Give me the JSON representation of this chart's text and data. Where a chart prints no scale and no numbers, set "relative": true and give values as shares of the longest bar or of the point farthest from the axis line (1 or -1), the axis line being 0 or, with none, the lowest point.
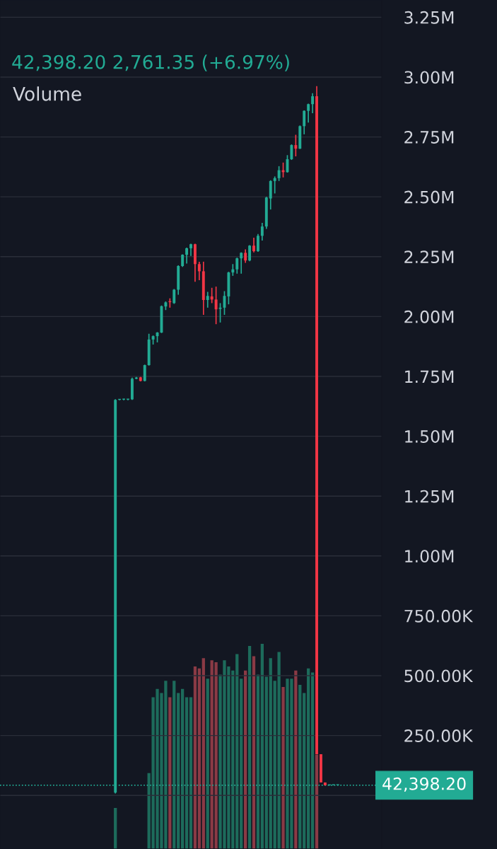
{
  "chart_data": [
    {
      "type": "candlestick",
      "subtitle": "42,398.20 2,761.35 (+6.97%)",
      "categories": [
        null,
        null,
        null,
        null,
        null,
        null,
        null,
        null,
        null,
        null,
        null,
        null,
        null,
        null,
        null,
        null,
        null,
        null,
        null,
        null,
        null,
        null,
        null,
        null,
        null,
        null,
        null,
        null,
        null,
        null,
        null,
        null,
        null,
        null,
        null,
        null,
        null,
        null,
        null,
        null,
        null,
        null,
        null,
        null,
        null,
        null,
        null,
        null,
        null,
        null,
        null,
        null,
        null,
        null,
        null,
        null,
        null,
        null,
        null,
        null,
        null,
        null,
        null,
        null,
        null,
        null,
        null,
        null,
        null,
        null,
        null,
        null,
        null,
        null,
        null,
        null,
        null,
        null,
        null,
        null,
        null,
        null,
        null,
        null,
        null,
        null,
        null,
        null,
        null,
        null,
        null
      ],
      "ohlc": [
        null,
        null,
        null,
        null,
        null,
        null,
        null,
        null,
        null,
        null,
        null,
        null,
        null,
        null,
        null,
        null,
        null,
        null,
        null,
        null,
        null,
        null,
        null,
        null,
        null,
        null,
        null,
        [
          12000,
          1655000,
          8000,
          1652000
        ],
        [
          1652000,
          1655000,
          1650000,
          1653000
        ],
        [
          1653000,
          1656000,
          1650000,
          1653000
        ],
        [
          1653000,
          1655000,
          1650000,
          1654000
        ],
        [
          1654000,
          1745000,
          1652000,
          1740000
        ],
        [
          1740000,
          1748000,
          1738000,
          1745000
        ],
        [
          1746000,
          1748000,
          1729000,
          1731000
        ],
        [
          1731000,
          1799000,
          1729000,
          1797000
        ],
        [
          1797000,
          1928000,
          1795000,
          1904000
        ],
        [
          1904000,
          1921000,
          1883000,
          1918000
        ],
        [
          1918000,
          1935000,
          1892000,
          1933000
        ],
        [
          1933000,
          2046000,
          1931000,
          2043000
        ],
        [
          2042000,
          2063000,
          2027000,
          2059000
        ],
        [
          2063000,
          2076000,
          2037000,
          2060000
        ],
        [
          2056000,
          2115000,
          2053000,
          2112000
        ],
        [
          2112000,
          2214000,
          2091000,
          2211000
        ],
        [
          2211000,
          2260000,
          2207000,
          2258000
        ],
        [
          2258000,
          2288000,
          2221000,
          2285000
        ],
        [
          2285000,
          2304000,
          2253000,
          2302000
        ],
        [
          2302000,
          2304000,
          2145000,
          2219000
        ],
        [
          2219000,
          2229000,
          2152000,
          2189000
        ],
        [
          2189000,
          2229000,
          2007000,
          2069000
        ],
        [
          2069000,
          2103000,
          2037000,
          2086000
        ],
        [
          2084000,
          2120000,
          2056000,
          2071000
        ],
        [
          2071000,
          2125000,
          1968000,
          2030000
        ],
        [
          2032000,
          2056000,
          1975000,
          2037000
        ],
        [
          2037000,
          2106000,
          2007000,
          2086000
        ],
        [
          2084000,
          2187000,
          2051000,
          2184000
        ],
        [
          2184000,
          2219000,
          2170000,
          2197000
        ],
        [
          2197000,
          2246000,
          2179000,
          2243000
        ],
        [
          2243000,
          2268000,
          2179000,
          2266000
        ],
        [
          2266000,
          2280000,
          2224000,
          2234000
        ],
        [
          2234000,
          2298000,
          2231000,
          2296000
        ],
        [
          2296000,
          2329000,
          2268000,
          2273000
        ],
        [
          2273000,
          2345000,
          2270000,
          2337000
        ],
        [
          2337000,
          2391000,
          2317000,
          2376000
        ],
        [
          2376000,
          2500000,
          2366000,
          2497000
        ],
        [
          2493000,
          2569000,
          2447000,
          2566000
        ],
        [
          2566000,
          2585000,
          2514000,
          2578000
        ],
        [
          2578000,
          2628000,
          2566000,
          2611000
        ],
        [
          2611000,
          2643000,
          2581000,
          2603000
        ],
        [
          2603000,
          2674000,
          2601000,
          2657000
        ],
        [
          2657000,
          2719000,
          2654000,
          2716000
        ],
        [
          2716000,
          2759000,
          2669000,
          2701000
        ],
        [
          2701000,
          2798000,
          2700000,
          2795000
        ],
        [
          2795000,
          2861000,
          2761000,
          2859000
        ],
        [
          2859000,
          2889000,
          2810000,
          2887000
        ],
        [
          2887000,
          2933000,
          2849000,
          2920000
        ],
        [
          2920000,
          2962000,
          172000,
          172000
        ],
        [
          172000,
          172000,
          54000,
          54000
        ],
        [
          54000,
          54000,
          42000,
          42000
        ],
        [
          42000,
          43000,
          41000,
          42400
        ],
        [
          42400,
          43000,
          42000,
          42500
        ],
        [
          42500,
          43000,
          42000,
          42500
        ],
        null,
        null,
        null,
        null,
        null,
        null,
        null,
        null,
        null,
        null
      ],
      "colors": [
        null,
        null,
        null,
        null,
        null,
        null,
        null,
        null,
        null,
        null,
        null,
        null,
        null,
        null,
        null,
        null,
        null,
        null,
        null,
        null,
        null,
        null,
        null,
        null,
        null,
        null,
        null,
        "#22ab94",
        "#22ab94",
        "#22ab94",
        "#22ab94",
        "#22ab94",
        "#22ab94",
        "#f23645",
        "#22ab94",
        "#22ab94",
        "#22ab94",
        "#22ab94",
        "#22ab94",
        "#22ab94",
        "#f23645",
        "#22ab94",
        "#22ab94",
        "#22ab94",
        "#22ab94",
        "#22ab94",
        "#f23645",
        "#f23645",
        "#f23645",
        "#22ab94",
        "#f23645",
        "#f23645",
        "#22ab94",
        "#22ab94",
        "#22ab94",
        "#22ab94",
        "#22ab94",
        "#22ab94",
        "#f23645",
        "#22ab94",
        "#f23645",
        "#22ab94",
        "#22ab94",
        "#22ab94",
        "#22ab94",
        "#22ab94",
        "#22ab94",
        "#f23645",
        "#22ab94",
        "#22ab94",
        "#f23645",
        "#22ab94",
        "#22ab94",
        "#22ab94",
        "#22ab94",
        "#f23645",
        "#f23645",
        "#f23645",
        "#22ab94",
        "#22ab94",
        "#22ab94",
        null,
        null,
        null,
        null,
        null,
        null,
        null,
        null,
        null,
        null
      ],
      "ylim": [
        -224000,
        3322000
      ],
      "yticks": [
        {
          "value": 0,
          "label": null
        },
        {
          "value": 250000,
          "label": "250.00K"
        },
        {
          "value": 500000,
          "label": "500.00K"
        },
        {
          "value": 750000,
          "label": "750.00K"
        },
        {
          "value": 1000000,
          "label": "1.00M"
        },
        {
          "value": 1250000,
          "label": "1.25M"
        },
        {
          "value": 1500000,
          "label": "1.50M"
        },
        {
          "value": 1750000,
          "label": "1.75M"
        },
        {
          "value": 2000000,
          "label": "2.00M"
        },
        {
          "value": 2250000,
          "label": "2.25M"
        },
        {
          "value": 2500000,
          "label": "2.50M"
        },
        {
          "value": 2750000,
          "label": "2.75M"
        },
        {
          "value": 3000000,
          "label": "3.00M"
        },
        {
          "value": 3250000,
          "label": "3.25M"
        }
      ],
      "ref_lines": [
        {
          "axis": "y",
          "value": 42398.2,
          "label": "42,398.20",
          "color": "#22ab94",
          "line_style": "dotted"
        }
      ],
      "grid": "y",
      "tick_labels": "y"
    },
    {
      "type": "bar",
      "relative": true,
      "tick_labels": false,
      "annotations": [
        "Volume"
      ],
      "categories": [
        null,
        null,
        null,
        null,
        null,
        null,
        null,
        null,
        null,
        null,
        null,
        null,
        null,
        null,
        null,
        null,
        null,
        null,
        null,
        null,
        null,
        null,
        null,
        null,
        null,
        null,
        null,
        null,
        null,
        null,
        null,
        null,
        null,
        null,
        null,
        null,
        null,
        null,
        null,
        null,
        null,
        null,
        null,
        null,
        null,
        null,
        null,
        null,
        null,
        null,
        null,
        null,
        null,
        null,
        null,
        null,
        null,
        null,
        null,
        null,
        null,
        null,
        null,
        null,
        null,
        null,
        null,
        null,
        null,
        null,
        null,
        null,
        null,
        null,
        null,
        null,
        null,
        null,
        null,
        null,
        null,
        null,
        null,
        null,
        null,
        null,
        null,
        null,
        null,
        null,
        null
      ],
      "values": [
        null,
        null,
        null,
        null,
        null,
        null,
        null,
        null,
        null,
        null,
        null,
        null,
        null,
        null,
        null,
        null,
        null,
        null,
        null,
        null,
        null,
        null,
        null,
        null,
        null,
        null,
        null,
        0.2,
        null,
        null,
        null,
        null,
        null,
        null,
        null,
        0.37,
        0.74,
        0.78,
        0.76,
        0.82,
        0.74,
        0.82,
        0.76,
        0.78,
        0.74,
        0.74,
        0.89,
        0.88,
        0.93,
        0.83,
        0.92,
        0.91,
        0.85,
        0.92,
        0.89,
        0.87,
        0.95,
        0.83,
        0.87,
        0.99,
        0.94,
        0.85,
        1,
        0.84,
        0.93,
        0.82,
        0.96,
        0.79,
        0.83,
        0.83,
        0.87,
        0.8,
        0.76,
        0.88,
        0.86,
        0.46,
        null,
        null,
        null,
        null,
        null,
        null,
        null,
        null,
        null,
        null,
        null,
        null,
        null,
        null,
        null
      ],
      "colors": [
        null,
        null,
        null,
        null,
        null,
        null,
        null,
        null,
        null,
        null,
        null,
        null,
        null,
        null,
        null,
        null,
        null,
        null,
        null,
        null,
        null,
        null,
        null,
        null,
        null,
        null,
        null,
        "#1d6b5b",
        null,
        null,
        null,
        null,
        null,
        null,
        null,
        "#1d6b5b",
        "#1d6b5b",
        "#1d6b5b",
        "#1d6b5b",
        "#1d6b5b",
        "#8a3a45",
        "#1d6b5b",
        "#1d6b5b",
        "#1d6b5b",
        "#1d6b5b",
        "#1d6b5b",
        "#8a3a45",
        "#8a3a45",
        "#8a3a45",
        "#1d6b5b",
        "#8a3a45",
        "#8a3a45",
        "#1d6b5b",
        "#1d6b5b",
        "#1d6b5b",
        "#1d6b5b",
        "#1d6b5b",
        "#1d6b5b",
        "#8a3a45",
        "#1d6b5b",
        "#8a3a45",
        "#1d6b5b",
        "#1d6b5b",
        "#1d6b5b",
        "#1d6b5b",
        "#1d6b5b",
        "#1d6b5b",
        "#8a3a45",
        "#1d6b5b",
        "#1d6b5b",
        "#8a3a45",
        "#1d6b5b",
        "#1d6b5b",
        "#1d6b5b",
        "#1d6b5b",
        "#8a3a45",
        null,
        null,
        null,
        null,
        null,
        null,
        null,
        null,
        null,
        null,
        null,
        null,
        null,
        null,
        null
      ]
    }
  ]
}
